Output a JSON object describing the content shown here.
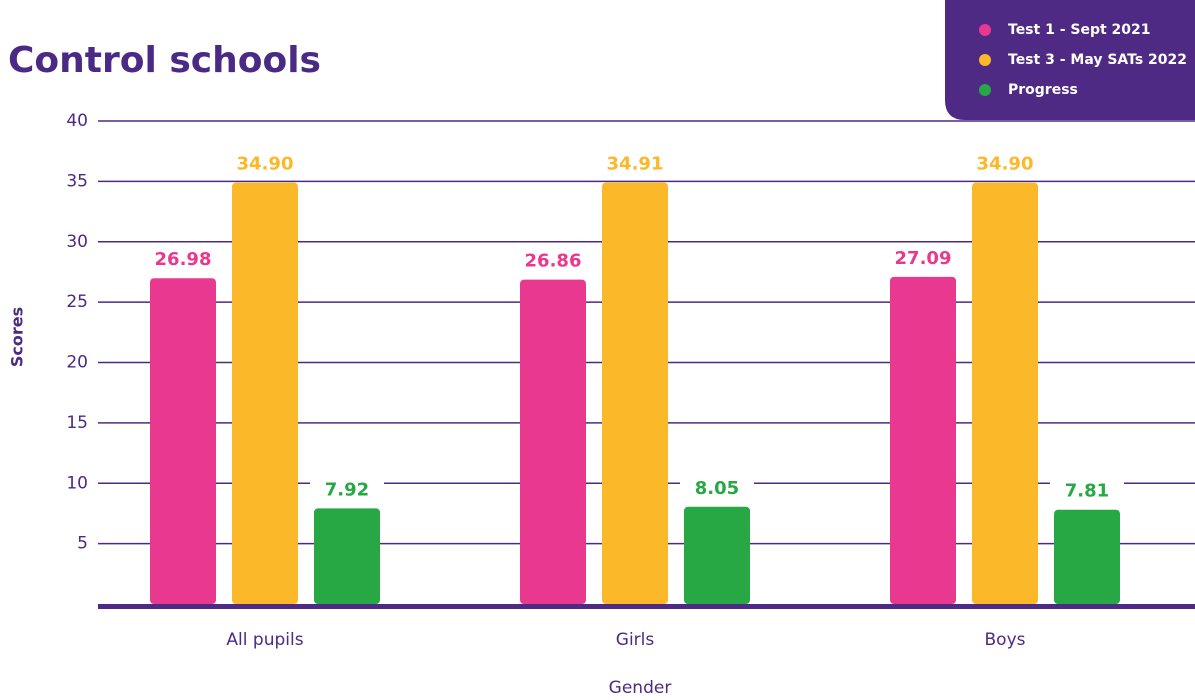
{
  "chart_data": {
    "type": "bar",
    "title": "Control schools",
    "x_label": "Gender",
    "y_label": "Scores",
    "categories": [
      "All pupils",
      "Girls",
      "Boys"
    ],
    "series": [
      {
        "name": "Test 1 - Sept 2021",
        "color": "#e8388f",
        "values": [
          26.98,
          26.86,
          27.09
        ],
        "value_labels": [
          "26.98",
          "26.86",
          "27.09"
        ]
      },
      {
        "name": "Test 3 - May SATs 2022",
        "color": "#fbb829",
        "values": [
          34.9,
          34.91,
          34.9
        ],
        "value_labels": [
          "34.90",
          "34.91",
          "34.90"
        ]
      },
      {
        "name": "Progress",
        "color": "#27a845",
        "values": [
          7.92,
          8.05,
          7.81
        ],
        "value_labels": [
          "7.92",
          "8.05",
          "7.81"
        ]
      }
    ],
    "ylim": [
      0,
      40
    ],
    "yticks": [
      5,
      10,
      15,
      20,
      25,
      30,
      35,
      40
    ],
    "grid": true,
    "legend": "top-right"
  }
}
